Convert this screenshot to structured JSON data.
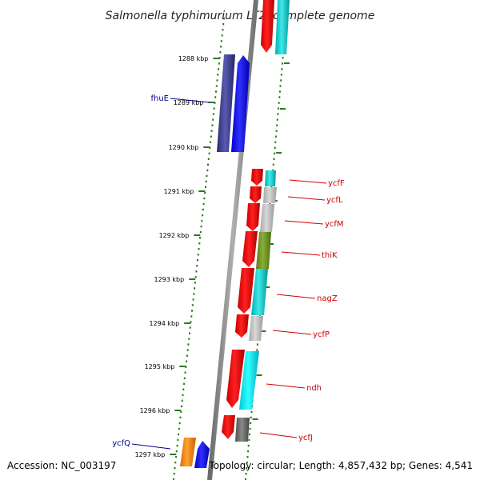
{
  "title": "Salmonella typhimurium LT2, complete genome",
  "footer": {
    "accession": "Accession: NC_003197",
    "topology": "Topology: circular; Length: 4,857,432 bp; Genes: 4,541"
  },
  "colors": {
    "backbone": "#8a8a8a",
    "dots": "#2a7a1f",
    "forward_label": "#d00000",
    "reverse_label": "#00008b"
  },
  "scale_ticks": [
    "1288 kbp",
    "1289 kbp",
    "1290 kbp",
    "1291 kbp",
    "1292 kbp",
    "1293 kbp",
    "1294 kbp",
    "1295 kbp",
    "1296 kbp",
    "1297 kbp"
  ],
  "gene_labels": {
    "ycfF": "ycfF",
    "ycfL": "ycfL",
    "ycfM": "ycfM",
    "thiK": "thiK",
    "nagZ": "nagZ",
    "ycfP": "ycfP",
    "ndh": "ndh",
    "ycfJ": "ycfJ",
    "fhuE": "fhuE",
    "ycfQ": "ycfQ"
  }
}
